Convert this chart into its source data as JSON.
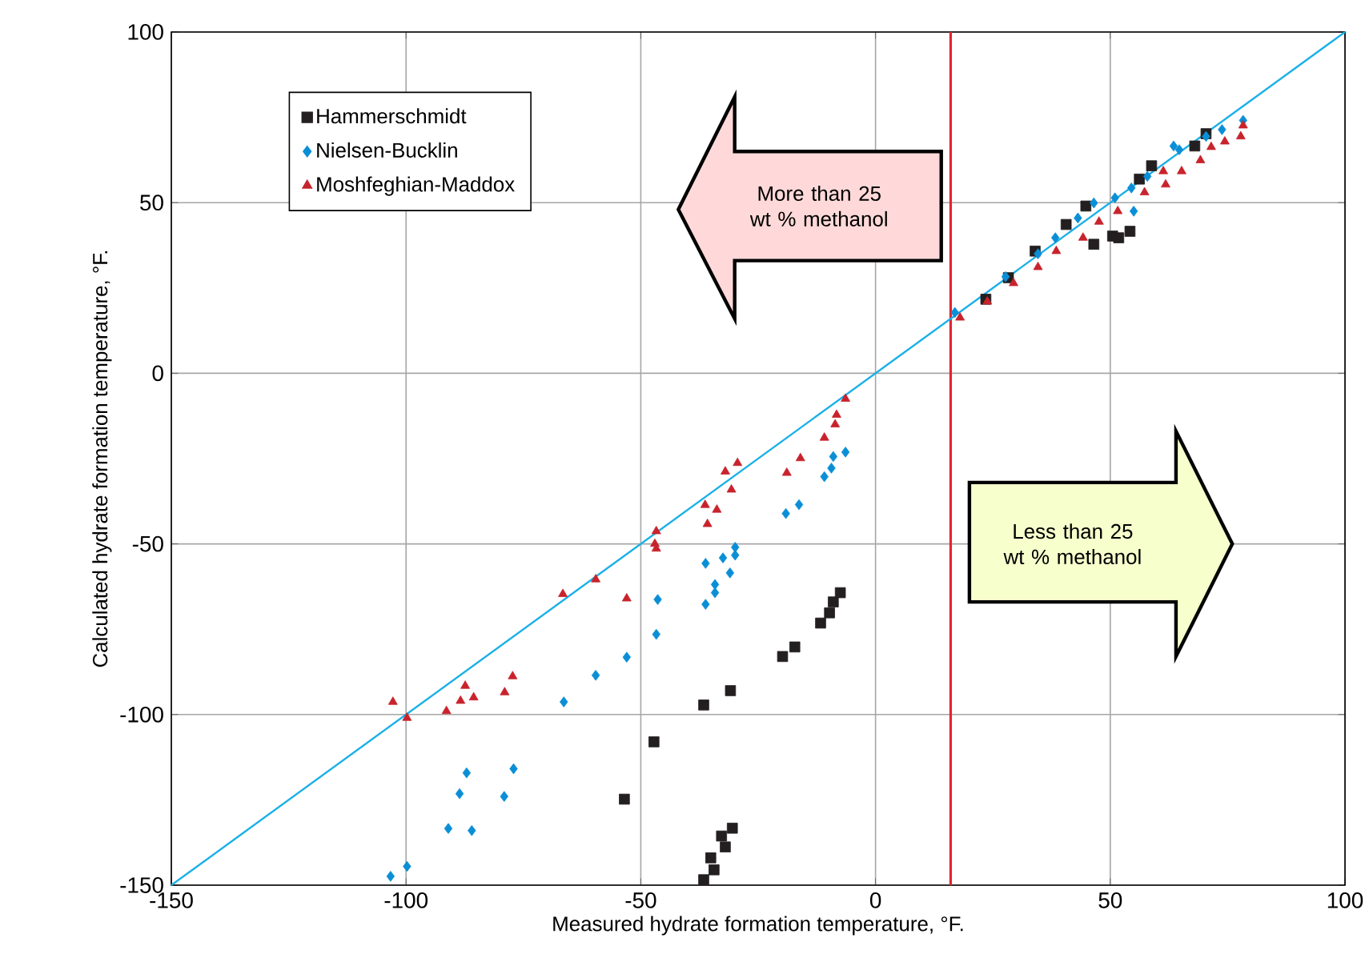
{
  "chart_data": {
    "type": "scatter",
    "xlabel": "Measured hydrate formation temperature, °F.",
    "ylabel": "Calculated hydrate formation temperature, °F.",
    "xlim": [
      -150,
      100
    ],
    "ylim": [
      -150,
      100
    ],
    "xticks": [
      -150,
      -100,
      -50,
      0,
      50,
      100
    ],
    "yticks": [
      -150,
      -100,
      -50,
      0,
      50,
      100
    ],
    "grid": true,
    "legend": "top left",
    "annotations": [
      "More than 25 wt % methanol",
      "Less than 25 wt % methanol"
    ],
    "ref_lines": [
      {
        "axis": "x",
        "value": 16,
        "color": "#e3262f"
      }
    ],
    "series": [
      {
        "name": "Hammerschmidt",
        "color": "#231f20",
        "marker": "square",
        "x": [
          -53.5,
          -47.2,
          -36.6,
          -30.9,
          -19.8,
          -17.2,
          -11.7,
          -9.8,
          -9,
          -7.5,
          -36.6,
          -34.4,
          -35.1,
          -32,
          -32.8,
          -30.5,
          23.5,
          28.3,
          34,
          40.6,
          44.8,
          46.5,
          50.5,
          51.8,
          54.2,
          56.2,
          58.8,
          68,
          70.4
        ],
        "values": [
          -124.8,
          -108,
          -97.2,
          -93,
          -83,
          -80.2,
          -73.2,
          -70.2,
          -67,
          -64.3,
          -148.4,
          -145.5,
          -142,
          -138.8,
          -135.6,
          -133.3,
          21.7,
          28,
          35.8,
          43.6,
          49,
          37.8,
          40.2,
          39.7,
          41.6,
          56.9,
          60.8,
          66.6,
          70.2
        ]
      },
      {
        "name": "Nielsen-Bucklin",
        "color": "#0a8fd6",
        "marker": "diamond",
        "x": [
          -103.3,
          -99.8,
          -91,
          -86,
          -88.6,
          -87.1,
          -79.1,
          -77.1,
          -66.4,
          -59.6,
          -53,
          -46.7,
          -46.4,
          -36.2,
          -36.2,
          -34.2,
          -34.2,
          -31,
          -32.5,
          -29.9,
          -29.9,
          -19.1,
          -16.3,
          -10.9,
          -9.4,
          -9,
          -6.4,
          16.9,
          27.7,
          34.6,
          38.3,
          43.1,
          46.5,
          51,
          55,
          54.5,
          57.9,
          63.5,
          64.7,
          70.4,
          73.8,
          78.3
        ],
        "values": [
          -147.4,
          -144.5,
          -133.4,
          -134,
          -123.2,
          -117.1,
          -124,
          -115.9,
          -96.3,
          -88.5,
          -83.2,
          -76.5,
          -66.3,
          -67.7,
          -55.7,
          -64.3,
          -61.9,
          -58.5,
          -54.1,
          -51,
          -53.3,
          -41.1,
          -38.5,
          -30.3,
          -27.8,
          -24.4,
          -23.1,
          17.8,
          28.3,
          35,
          39.7,
          45.5,
          49.9,
          51.4,
          47.5,
          54.3,
          57.7,
          66.6,
          65.5,
          69.4,
          71.4,
          74.1
        ]
      },
      {
        "name": "Moshfeghian-Maddox",
        "color": "#c8232c",
        "marker": "triangle",
        "x": [
          -102.8,
          -99.8,
          -91.4,
          -88.4,
          -87.4,
          -85.6,
          -79,
          -77.3,
          -66.6,
          -59.6,
          -53,
          -46.7,
          -46.7,
          -47,
          -36.3,
          -35.8,
          -33.8,
          -32,
          -29.4,
          -30.7,
          -18.9,
          -16,
          -10.9,
          -8.6,
          -8.3,
          -6.4,
          18,
          23.8,
          29.4,
          34.6,
          38.5,
          44.2,
          47.6,
          51.6,
          57.3,
          61.8,
          65.2,
          69.2,
          71.5,
          74.4,
          77.8,
          78.3,
          61.3
        ],
        "values": [
          -96.3,
          -101,
          -99,
          -96,
          -91.6,
          -95,
          -93.5,
          -88.8,
          -64.7,
          -60.4,
          -66,
          -51.4,
          -46.3,
          -50,
          -38.6,
          -44.2,
          -40,
          -28.8,
          -26.3,
          -34.1,
          -29.2,
          -24.9,
          -18.9,
          -15,
          -12.2,
          -7.5,
          16.3,
          21,
          26.4,
          31.1,
          35.8,
          39.7,
          44.4,
          47.5,
          53,
          55.3,
          59.2,
          62.4,
          66.3,
          67.9,
          69.4,
          72.6,
          59.2
        ]
      },
      {
        "type": "line",
        "color": "#1ab0e8",
        "marker": "none",
        "x": [
          -150,
          100
        ],
        "values": [
          -150,
          100
        ]
      }
    ]
  }
}
